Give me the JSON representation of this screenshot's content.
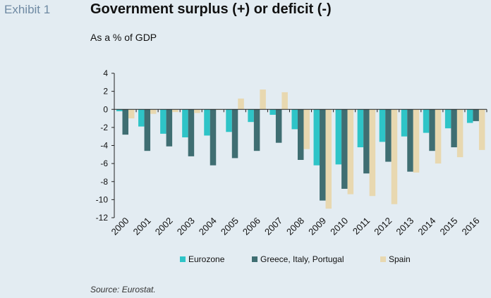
{
  "exhibit_label": "Exhibit 1",
  "source": "Source: Eurostat.",
  "chart_data": {
    "type": "bar",
    "title": "Government surplus (+) or deficit (-)",
    "subtitle": "As a % of GDP",
    "categories": [
      "2000",
      "2001",
      "2002",
      "2003",
      "2004",
      "2005",
      "2006",
      "2007",
      "2008",
      "2009",
      "2010",
      "2011",
      "2012",
      "2013",
      "2014",
      "2015",
      "2016"
    ],
    "series": [
      {
        "name": "Eurozone",
        "color": "#2ec4c7",
        "values": [
          -0.2,
          -1.9,
          -2.7,
          -3.1,
          -2.9,
          -2.5,
          -1.4,
          -0.6,
          -2.2,
          -6.2,
          -6.1,
          -4.2,
          -3.6,
          -3.0,
          -2.6,
          -2.1,
          -1.5
        ]
      },
      {
        "name": "Greece, Italy, Portugal",
        "color": "#3f6e72",
        "values": [
          -2.8,
          -4.6,
          -4.1,
          -5.2,
          -6.2,
          -5.4,
          -4.6,
          -3.7,
          -5.6,
          -10.1,
          -8.8,
          -7.1,
          -5.8,
          -6.9,
          -4.6,
          -4.2,
          -1.3
        ]
      },
      {
        "name": "Spain",
        "color": "#e8d8b0",
        "values": [
          -1.0,
          -0.5,
          -0.3,
          -0.4,
          0.0,
          1.2,
          2.2,
          1.9,
          -4.4,
          -11.0,
          -9.4,
          -9.6,
          -10.5,
          -7.0,
          -6.0,
          -5.3,
          -4.5
        ]
      }
    ],
    "yticks": [
      4,
      2,
      0,
      -2,
      -4,
      -6,
      -8,
      -10,
      -12
    ],
    "ylim": [
      -12,
      4
    ],
    "grid": false,
    "legend_position": "bottom"
  }
}
